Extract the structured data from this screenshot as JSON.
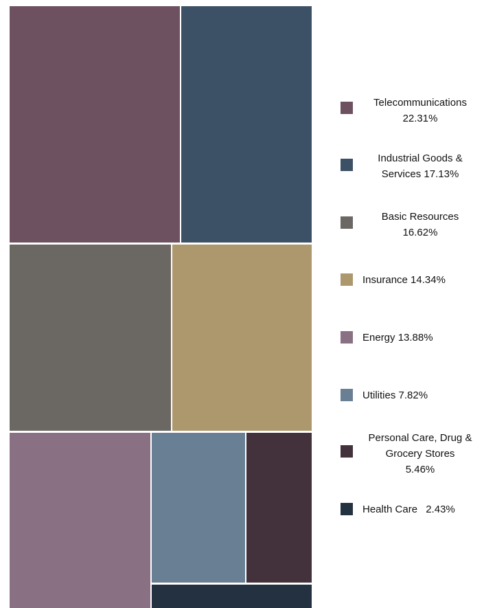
{
  "chart_data": {
    "type": "treemap",
    "title": "",
    "unit": "%",
    "items": [
      {
        "label": "Telecommunications",
        "value_text": "22.31%",
        "value": 22.31,
        "color": "#6e5160"
      },
      {
        "label": "Industrial Goods & Services",
        "value_text": "17.13%",
        "value": 17.13,
        "color": "#3d5166"
      },
      {
        "label": "Basic Resources",
        "value_text": "16.62%",
        "value": 16.62,
        "color": "#6b6863"
      },
      {
        "label": "Insurance",
        "value_text": "14.34%",
        "value": 14.34,
        "color": "#ad986d"
      },
      {
        "label": "Energy",
        "value_text": "13.88%",
        "value": 13.88,
        "color": "#8a7083"
      },
      {
        "label": "Utilities",
        "value_text": "7.82%",
        "value": 7.82,
        "color": "#687f94"
      },
      {
        "label": "Personal Care, Drug & Grocery Stores",
        "value_text": "5.46%",
        "value": 5.46,
        "color": "#43323b"
      },
      {
        "label": "Health Care",
        "value_text": "2.43%",
        "value": 2.43,
        "color": "#243140"
      }
    ]
  }
}
